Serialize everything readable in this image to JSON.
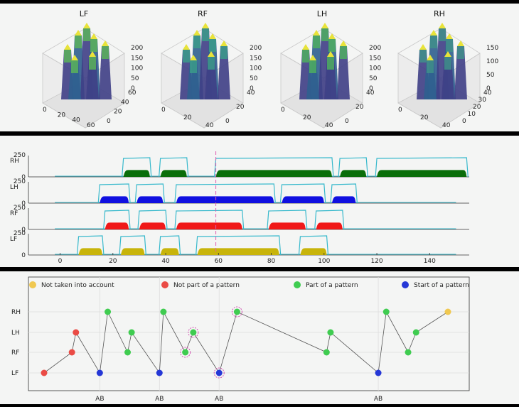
{
  "chart_data": [
    {
      "type": "surface3d",
      "panels": [
        {
          "title": "LF",
          "z_ticks": [
            "200",
            "150",
            "100",
            "50",
            "0"
          ],
          "x_ticks": [
            "0",
            "20",
            "40",
            "60"
          ],
          "y_ticks": [
            "60",
            "40",
            "20",
            "0"
          ],
          "color": "#5bb35a"
        },
        {
          "title": "RF",
          "z_ticks": [
            "200",
            "150",
            "100",
            "50",
            "0"
          ],
          "x_ticks": [
            "0",
            "20",
            "40"
          ],
          "y_ticks": [
            "40",
            "20",
            "0"
          ],
          "color": "#3b9b8a"
        },
        {
          "title": "LH",
          "z_ticks": [
            "200",
            "150",
            "100",
            "50",
            "0"
          ],
          "x_ticks": [
            "0",
            "20",
            "40"
          ],
          "y_ticks": [
            "40",
            "20",
            "0"
          ],
          "color": "#4dae60"
        },
        {
          "title": "RH",
          "z_ticks": [
            "150",
            "100",
            "50",
            "0"
          ],
          "x_ticks": [
            "0",
            "20",
            "40"
          ],
          "y_ticks": [
            "40",
            "30",
            "20",
            "10",
            "0"
          ],
          "color": "#3f8f8a"
        }
      ]
    },
    {
      "type": "area",
      "x_ticks": [
        0,
        20,
        40,
        60,
        80,
        100,
        120,
        140
      ],
      "xlim": [
        -12,
        155
      ],
      "ylim": [
        0,
        250
      ],
      "y_ticks": [
        "250",
        "0"
      ],
      "marker_x": 59,
      "outline_color": "#38b9cc",
      "rows": [
        {
          "label": "RH",
          "color": "#0a6e0a",
          "segments": [
            [
              24,
              34
            ],
            [
              38,
              48
            ],
            [
              59,
              103
            ],
            [
              106,
              116
            ],
            [
              120,
              154
            ]
          ]
        },
        {
          "label": "LH",
          "color": "#1010e0",
          "segments": [
            [
              15,
              26
            ],
            [
              29,
              39
            ],
            [
              44,
              81
            ],
            [
              84,
              100
            ],
            [
              103,
              112
            ]
          ]
        },
        {
          "label": "RF",
          "color": "#f01818",
          "segments": [
            [
              17,
              26
            ],
            [
              30,
              40
            ],
            [
              44,
              69
            ],
            [
              79,
              93
            ],
            [
              97,
              107
            ]
          ]
        },
        {
          "label": "LF",
          "color": "#c8b40a",
          "segments": [
            [
              7,
              16
            ],
            [
              23,
              32
            ],
            [
              38,
              45
            ],
            [
              52,
              83
            ],
            [
              91,
              101
            ]
          ]
        }
      ]
    },
    {
      "type": "scatter",
      "legend": [
        {
          "label": "Not taken into account",
          "color": "#f0c850"
        },
        {
          "label": "Not part of a pattern",
          "color": "#ea4b45"
        },
        {
          "label": "Part of a pattern",
          "color": "#3fcc50"
        },
        {
          "label": "Start of a pattern",
          "color": "#2537d6"
        }
      ],
      "y_categories": [
        "LF",
        "RF",
        "LH",
        "RH"
      ],
      "xlim": [
        0,
        21
      ],
      "x_ticks": [
        {
          "x": 3.8,
          "label": "AB"
        },
        {
          "x": 6.8,
          "label": "AB"
        },
        {
          "x": 9.8,
          "label": "AB"
        },
        {
          "x": 17.8,
          "label": "AB"
        }
      ],
      "points": [
        {
          "x": 1.0,
          "y": "LF",
          "status": "Not part of a pattern"
        },
        {
          "x": 2.4,
          "y": "RF",
          "status": "Not part of a pattern"
        },
        {
          "x": 2.6,
          "y": "LH",
          "status": "Not part of a pattern"
        },
        {
          "x": 3.8,
          "y": "LF",
          "status": "Start of a pattern"
        },
        {
          "x": 4.2,
          "y": "RH",
          "status": "Part of a pattern"
        },
        {
          "x": 5.2,
          "y": "RF",
          "status": "Part of a pattern"
        },
        {
          "x": 5.4,
          "y": "LH",
          "status": "Part of a pattern"
        },
        {
          "x": 6.8,
          "y": "LF",
          "status": "Start of a pattern"
        },
        {
          "x": 7.0,
          "y": "RH",
          "status": "Part of a pattern"
        },
        {
          "x": 8.1,
          "y": "RF",
          "status": "Part of a pattern",
          "ring": true
        },
        {
          "x": 8.5,
          "y": "LH",
          "status": "Part of a pattern",
          "ring": true
        },
        {
          "x": 9.8,
          "y": "LF",
          "status": "Start of a pattern",
          "ring": true
        },
        {
          "x": 10.7,
          "y": "RH",
          "status": "Part of a pattern",
          "ring": true
        },
        {
          "x": 15.2,
          "y": "RF",
          "status": "Part of a pattern"
        },
        {
          "x": 15.4,
          "y": "LH",
          "status": "Part of a pattern"
        },
        {
          "x": 17.8,
          "y": "LF",
          "status": "Start of a pattern"
        },
        {
          "x": 18.2,
          "y": "RH",
          "status": "Part of a pattern"
        },
        {
          "x": 19.3,
          "y": "RF",
          "status": "Part of a pattern"
        },
        {
          "x": 19.7,
          "y": "LH",
          "status": "Part of a pattern"
        },
        {
          "x": 21.3,
          "y": "RH",
          "status": "Not taken into account"
        }
      ]
    }
  ]
}
